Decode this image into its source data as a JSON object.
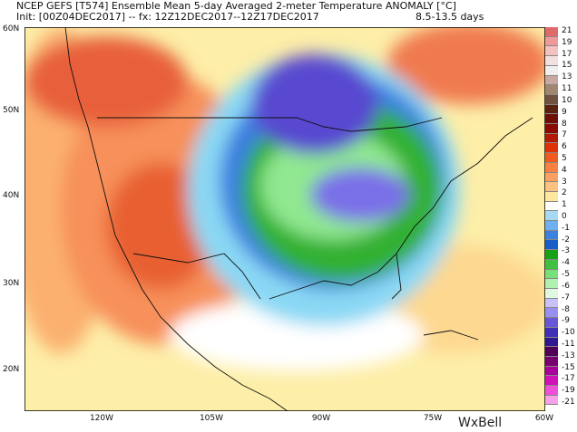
{
  "header": {
    "title": "NCEP GEFS [T574] Ensemble Mean 5-day Averaged 2-meter Temperature ANOMALY [°C]",
    "init": "Init: [00Z04DEC2017] -- fx: 12Z12DEC2017--12Z17DEC2017",
    "range": "8.5-13.5 days"
  },
  "axes": {
    "lat_labels": [
      "60N",
      "50N",
      "40N",
      "30N",
      "20N"
    ],
    "lon_labels": [
      "120W",
      "105W",
      "90W",
      "75W",
      "60W"
    ]
  },
  "colorbar": {
    "unit": "°C",
    "labels": [
      "21",
      "19",
      "17",
      "15",
      "13",
      "11",
      "10",
      "9",
      "8",
      "7",
      "6",
      "5",
      "4",
      "3",
      "2",
      "1",
      "0",
      "-1",
      "-2",
      "-3",
      "-4",
      "-5",
      "-6",
      "-7",
      "-8",
      "-9",
      "-10",
      "-11",
      "-13",
      "-15",
      "-17",
      "-19",
      "-21"
    ],
    "colors": [
      "#e06a6a",
      "#ee9a9a",
      "#f4c0c0",
      "#f2e0e0",
      "#f0eeee",
      "#c8a8a0",
      "#a08870",
      "#705040",
      "#5a2010",
      "#6e0e06",
      "#8a0a04",
      "#b01a06",
      "#e03008",
      "#f05a20",
      "#f88040",
      "#fba060",
      "#fcc080",
      "#fee8a0",
      "#ffffff",
      "#a8d8f4",
      "#70b0f0",
      "#3c80e0",
      "#1a5cc8",
      "#18a018",
      "#40c040",
      "#78e078",
      "#b0f0b0",
      "#e0f8e0",
      "#c8c0f8",
      "#9890f0",
      "#6858d8",
      "#4030b8",
      "#301890",
      "#500058",
      "#780070",
      "#a80098",
      "#d010b8",
      "#f050d8",
      "#f8a0e8"
    ]
  },
  "logo": "WxBell"
}
